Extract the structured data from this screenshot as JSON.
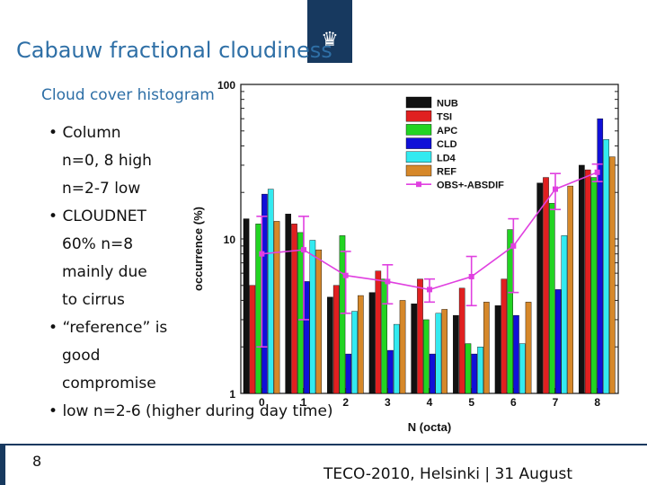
{
  "slide": {
    "title": "Cabauw fractional cloudiness",
    "subtitle": "Cloud cover histogram",
    "bullets": [
      {
        "bullet": "•",
        "text": "Column",
        "indent": false
      },
      {
        "bullet": "",
        "text": "n=0, 8 high",
        "indent": true
      },
      {
        "bullet": "",
        "text": "n=2-7 low",
        "indent": true
      },
      {
        "bullet": "•",
        "text": "CLOUDNET",
        "indent": false
      },
      {
        "bullet": "",
        "text": "60% n=8",
        "indent": true
      },
      {
        "bullet": "",
        "text": "mainly due",
        "indent": true
      },
      {
        "bullet": "",
        "text": "to cirrus",
        "indent": true
      },
      {
        "bullet": "•",
        "text": "“reference” is",
        "indent": false
      },
      {
        "bullet": "",
        "text": "good",
        "indent": true
      },
      {
        "bullet": "",
        "text": "compromise",
        "indent": true
      },
      {
        "bullet": "•",
        "text": "low n=2-6 (higher during day time)",
        "indent": false
      }
    ],
    "page_number": "8",
    "footer": "TECO-2010, Helsinki | 31 August",
    "colors": {
      "title": "#2e6fa6",
      "brand": "#17395f"
    }
  },
  "chart_data": {
    "type": "bar",
    "xlabel": "N (octa)",
    "ylabel": "occurrence (%)",
    "ylim": [
      1,
      100
    ],
    "yscale": "log",
    "yticks": [
      "1",
      "10",
      "100"
    ],
    "categories": [
      "0",
      "1",
      "2",
      "3",
      "4",
      "5",
      "6",
      "7",
      "8"
    ],
    "legend_position": "top-left",
    "series": [
      {
        "name": "NUB",
        "color": "#111111",
        "values": [
          13.5,
          14.5,
          4.2,
          4.5,
          3.8,
          3.2,
          3.7,
          23,
          30
        ]
      },
      {
        "name": "TSI",
        "color": "#e02020",
        "values": [
          5.0,
          12.5,
          5.0,
          6.2,
          5.5,
          4.8,
          5.5,
          25,
          28
        ]
      },
      {
        "name": "APC",
        "color": "#22d422",
        "values": [
          12.5,
          11.0,
          10.5,
          5.5,
          3.0,
          2.1,
          11.5,
          17,
          25
        ]
      },
      {
        "name": "CLD",
        "color": "#1010d8",
        "values": [
          19.5,
          5.3,
          1.8,
          1.9,
          1.8,
          1.8,
          3.2,
          4.7,
          60
        ]
      },
      {
        "name": "LD4",
        "color": "#33eaf0",
        "values": [
          21,
          9.8,
          3.4,
          2.8,
          3.3,
          2.0,
          2.1,
          10.5,
          44
        ]
      },
      {
        "name": "REF",
        "color": "#d6882a",
        "values": [
          13,
          8.5,
          4.3,
          4.0,
          3.5,
          3.9,
          3.9,
          22,
          34
        ]
      },
      {
        "name": "OBS+-ABSDIF",
        "color": "#e040e0",
        "type": "line",
        "values": [
          8.0,
          8.5,
          5.8,
          5.3,
          4.7,
          5.7,
          9.0,
          21,
          27
        ],
        "errors": [
          6.0,
          5.5,
          2.5,
          1.5,
          0.8,
          2.0,
          4.5,
          5.5,
          3.5
        ]
      }
    ]
  }
}
